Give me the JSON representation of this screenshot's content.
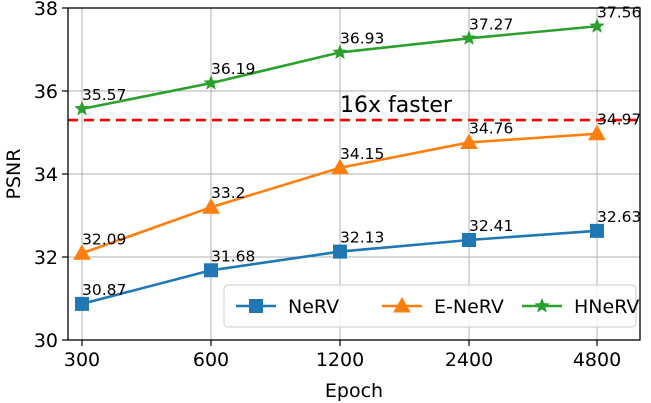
{
  "chart_data": {
    "type": "line",
    "title": "",
    "xlabel": "Epoch",
    "ylabel": "PSNR",
    "categories": [
      "300",
      "600",
      "1200",
      "2400",
      "4800"
    ],
    "ylim": [
      30,
      38
    ],
    "yticks": [
      30,
      32,
      34,
      36,
      38
    ],
    "grid": true,
    "legend": {
      "position": "lower-right",
      "columns": 3
    },
    "series": [
      {
        "name": "NeRV",
        "values": [
          30.87,
          31.68,
          32.13,
          32.41,
          32.63
        ],
        "labels": [
          "30.87",
          "31.68",
          "32.13",
          "32.41",
          "32.63"
        ],
        "color": "#1f77b4",
        "marker": "square"
      },
      {
        "name": "E-NeRV",
        "values": [
          32.09,
          33.2,
          34.15,
          34.76,
          34.97
        ],
        "labels": [
          "32.09",
          "33.2",
          "34.15",
          "34.76",
          "34.97"
        ],
        "color": "#ff7f0e",
        "marker": "triangle"
      },
      {
        "name": "HNeRV",
        "values": [
          35.57,
          36.19,
          36.93,
          37.27,
          37.56
        ],
        "labels": [
          "35.57",
          "36.19",
          "36.93",
          "37.27",
          "37.56"
        ],
        "color": "#2ca02c",
        "marker": "star"
      }
    ],
    "reference_line": {
      "value": 35.3,
      "color": "#ff0000",
      "style": "dashed"
    },
    "annotations": [
      {
        "text": "16x faster",
        "color": "#ff0000"
      }
    ]
  }
}
